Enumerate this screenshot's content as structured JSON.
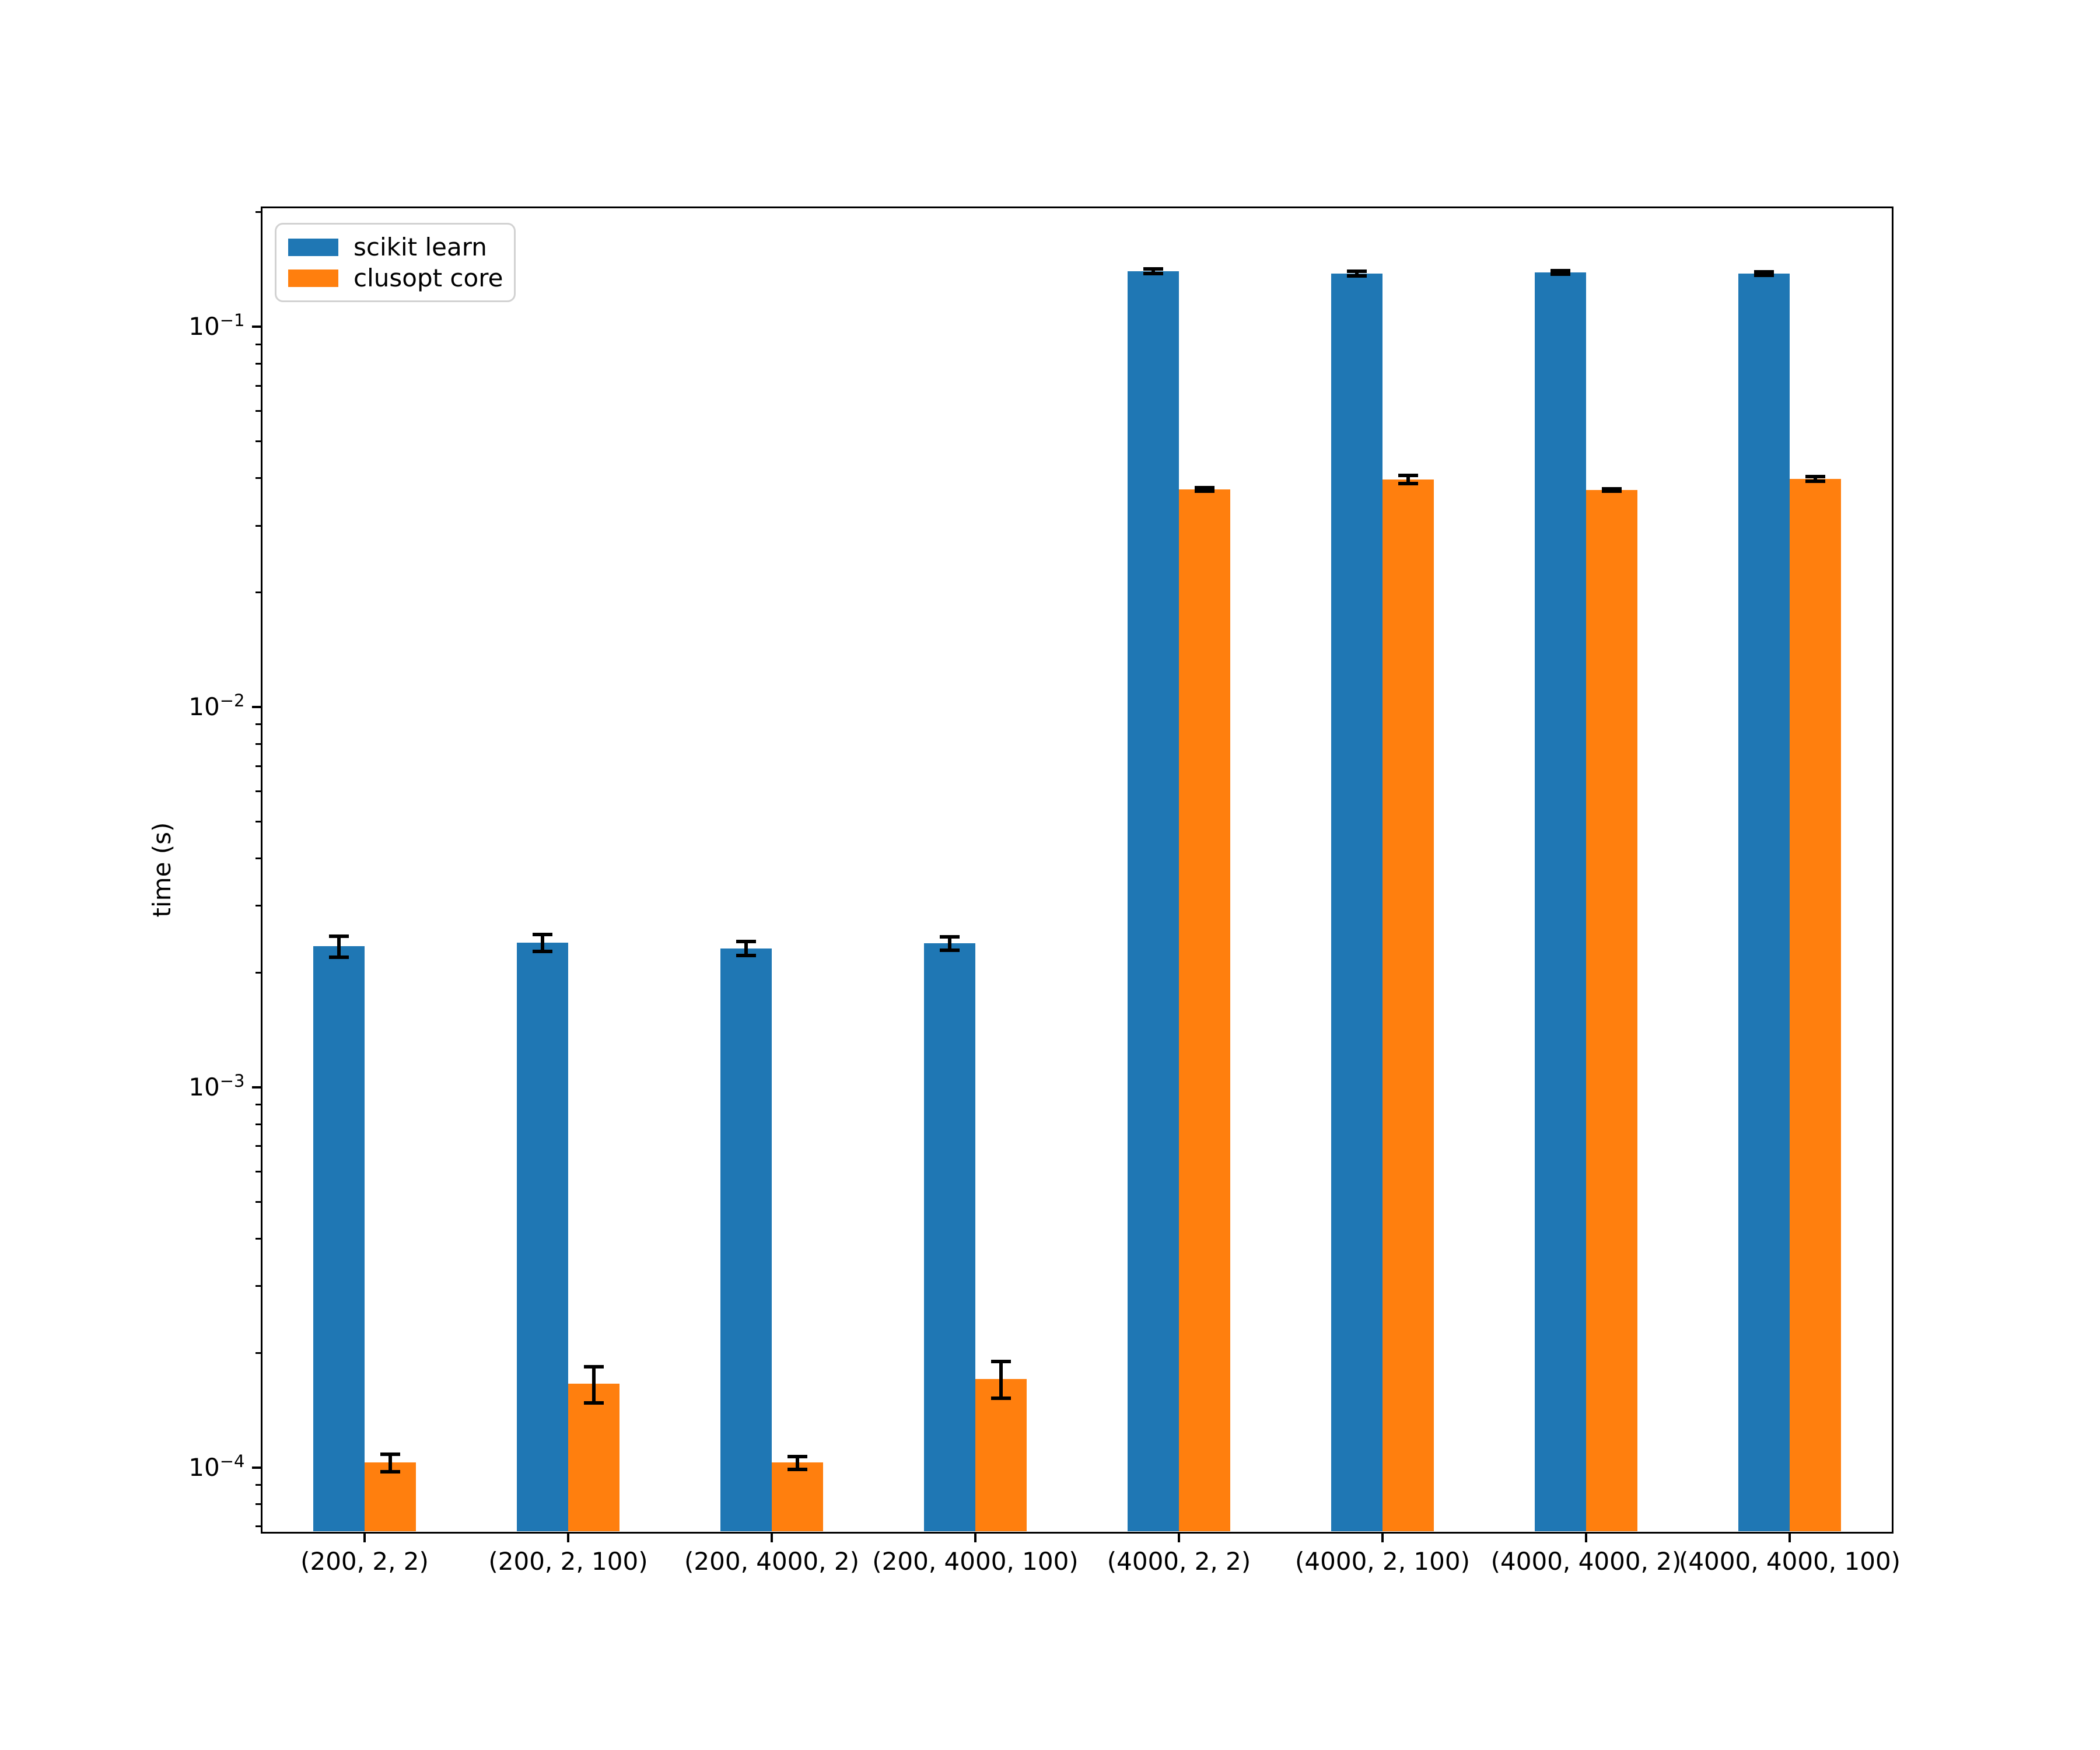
{
  "chart_data": {
    "type": "bar",
    "title": "",
    "xlabel": "",
    "ylabel": "time (s)",
    "yscale": "log",
    "ylim": [
      6.8e-05,
      0.205
    ],
    "y_major_tick_exponents": [
      -1,
      -2,
      -3,
      -4
    ],
    "grid": false,
    "background": "#ffffff",
    "error_color": "#000000",
    "legend_position": "upper left",
    "categories": [
      "(200, 2, 2)",
      "(200, 2, 100)",
      "(200, 4000, 2)",
      "(200, 4000, 100)",
      "(4000, 2, 2)",
      "(4000, 2, 100)",
      "(4000, 4000, 2)",
      "(4000, 4000, 100)"
    ],
    "series": [
      {
        "name": "scikit learn",
        "color": "#1f77b4",
        "values": [
          0.00235,
          0.0024,
          0.00232,
          0.00239,
          0.14,
          0.138,
          0.139,
          0.138
        ],
        "errors": [
          0.00015,
          0.00012,
          0.0001,
          0.0001,
          0.002,
          0.002,
          0.0015,
          0.0015
        ]
      },
      {
        "name": "clusopt core",
        "color": "#ff7f0e",
        "values": [
          0.000103,
          0.000166,
          0.000103,
          0.000171,
          0.0373,
          0.0397,
          0.0372,
          0.0398
        ],
        "errors": [
          5.5e-06,
          1.8e-05,
          4e-06,
          1.9e-05,
          0.0004,
          0.001,
          0.0003,
          0.0006
        ]
      }
    ]
  }
}
